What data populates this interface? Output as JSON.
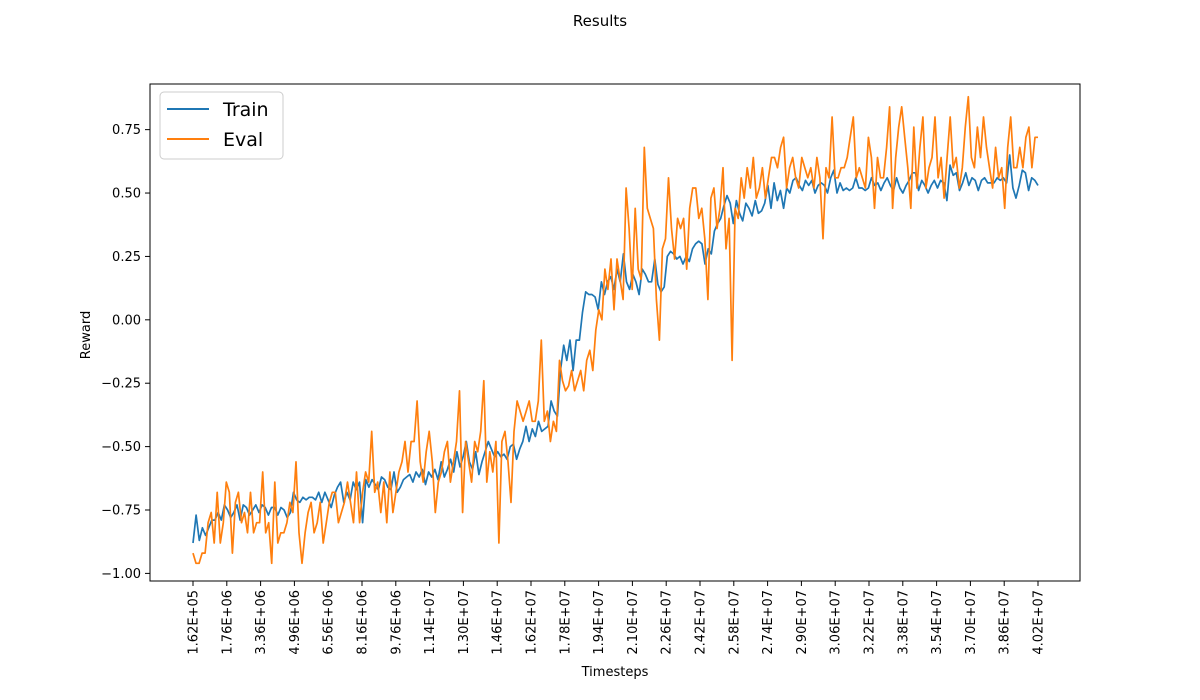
{
  "figure": {
    "suptitle": "Results"
  },
  "chart_data": {
    "type": "line",
    "title": "",
    "xlabel": "Timesteps",
    "ylabel": "Reward",
    "ylim": [
      -1.03,
      0.93
    ],
    "x_tick_labels": [
      "1.62E+05",
      "1.76E+06",
      "3.36E+06",
      "4.96E+06",
      "6.56E+06",
      "8.16E+06",
      "9.76E+06",
      "1.14E+07",
      "1.30E+07",
      "1.46E+07",
      "1.62E+07",
      "1.78E+07",
      "1.94E+07",
      "2.10E+07",
      "2.26E+07",
      "2.42E+07",
      "2.58E+07",
      "2.74E+07",
      "2.90E+07",
      "3.06E+07",
      "3.22E+07",
      "3.38E+07",
      "3.54E+07",
      "3.70E+07",
      "3.86E+07",
      "4.02E+07"
    ],
    "y_ticks": [
      -1.0,
      -0.75,
      -0.5,
      -0.25,
      0.0,
      0.25,
      0.5,
      0.75
    ],
    "y_tick_labels": [
      "−1.00",
      "−0.75",
      "−0.50",
      "−0.25",
      "0.00",
      "0.25",
      "0.50",
      "0.75"
    ],
    "legend_position": "top-left",
    "grid": false,
    "series": [
      {
        "name": "Train",
        "color": "#1f77b4",
        "values": [
          -0.88,
          -0.77,
          -0.87,
          -0.82,
          -0.85,
          -0.82,
          -0.79,
          -0.79,
          -0.76,
          -0.79,
          -0.73,
          -0.75,
          -0.78,
          -0.76,
          -0.73,
          -0.79,
          -0.73,
          -0.74,
          -0.77,
          -0.75,
          -0.73,
          -0.76,
          -0.73,
          -0.74,
          -0.77,
          -0.74,
          -0.74,
          -0.77,
          -0.74,
          -0.75,
          -0.78,
          -0.76,
          -0.68,
          -0.71,
          -0.72,
          -0.7,
          -0.71,
          -0.7,
          -0.7,
          -0.71,
          -0.68,
          -0.72,
          -0.68,
          -0.71,
          -0.74,
          -0.69,
          -0.66,
          -0.64,
          -0.72,
          -0.68,
          -0.71,
          -0.64,
          -0.67,
          -0.64,
          -0.8,
          -0.63,
          -0.66,
          -0.63,
          -0.65,
          -0.67,
          -0.62,
          -0.63,
          -0.66,
          -0.67,
          -0.6,
          -0.68,
          -0.66,
          -0.63,
          -0.62,
          -0.61,
          -0.64,
          -0.6,
          -0.62,
          -0.59,
          -0.65,
          -0.6,
          -0.62,
          -0.59,
          -0.63,
          -0.56,
          -0.62,
          -0.59,
          -0.55,
          -0.6,
          -0.52,
          -0.58,
          -0.54,
          -0.48,
          -0.56,
          -0.59,
          -0.52,
          -0.61,
          -0.56,
          -0.52,
          -0.48,
          -0.51,
          -0.54,
          -0.52,
          -0.54,
          -0.53,
          -0.55,
          -0.5,
          -0.49,
          -0.55,
          -0.51,
          -0.48,
          -0.42,
          -0.48,
          -0.43,
          -0.46,
          -0.4,
          -0.44,
          -0.43,
          -0.42,
          -0.32,
          -0.36,
          -0.38,
          -0.2,
          -0.1,
          -0.16,
          -0.08,
          -0.2,
          -0.08,
          -0.08,
          0.03,
          0.11,
          0.1,
          0.1,
          0.09,
          0.04,
          0.15,
          0.1,
          0.15,
          0.17,
          0.12,
          0.2,
          0.15,
          0.26,
          0.15,
          0.12,
          0.18,
          0.15,
          0.1,
          0.2,
          0.18,
          0.15,
          0.15,
          0.24,
          0.14,
          0.11,
          0.13,
          0.25,
          0.27,
          0.26,
          0.24,
          0.25,
          0.22,
          0.25,
          0.23,
          0.28,
          0.3,
          0.31,
          0.3,
          0.22,
          0.28,
          0.26,
          0.35,
          0.38,
          0.4,
          0.45,
          0.49,
          0.46,
          0.38,
          0.47,
          0.42,
          0.39,
          0.46,
          0.44,
          0.41,
          0.47,
          0.42,
          0.43,
          0.46,
          0.53,
          0.44,
          0.54,
          0.47,
          0.51,
          0.44,
          0.52,
          0.5,
          0.55,
          0.56,
          0.53,
          0.51,
          0.55,
          0.53,
          0.55,
          0.5,
          0.53,
          0.54,
          0.53,
          0.5,
          0.56,
          0.59,
          0.5,
          0.54,
          0.51,
          0.52,
          0.51,
          0.52,
          0.56,
          0.52,
          0.52,
          0.51,
          0.52,
          0.56,
          0.53,
          0.54,
          0.51,
          0.54,
          0.56,
          0.53,
          0.51,
          0.56,
          0.52,
          0.5,
          0.53,
          0.55,
          0.58,
          0.58,
          0.51,
          0.55,
          0.53,
          0.5,
          0.53,
          0.55,
          0.52,
          0.55,
          0.54,
          0.47,
          0.61,
          0.57,
          0.58,
          0.51,
          0.54,
          0.58,
          0.53,
          0.56,
          0.55,
          0.51,
          0.55,
          0.56,
          0.54,
          0.54,
          0.54,
          0.56,
          0.55,
          0.56,
          0.54,
          0.65,
          0.52,
          0.48,
          0.53,
          0.59,
          0.58,
          0.51,
          0.56,
          0.55,
          0.53
        ]
      },
      {
        "name": "Eval",
        "color": "#ff7f0e",
        "values": [
          -0.92,
          -0.96,
          -0.96,
          -0.92,
          -0.92,
          -0.8,
          -0.76,
          -0.88,
          -0.68,
          -0.88,
          -0.8,
          -0.64,
          -0.68,
          -0.92,
          -0.72,
          -0.68,
          -0.8,
          -0.76,
          -0.84,
          -0.68,
          -0.84,
          -0.8,
          -0.8,
          -0.6,
          -0.84,
          -0.8,
          -0.96,
          -0.64,
          -0.88,
          -0.84,
          -0.84,
          -0.8,
          -0.72,
          -0.76,
          -0.56,
          -0.84,
          -0.96,
          -0.84,
          -0.76,
          -0.72,
          -0.84,
          -0.8,
          -0.72,
          -0.88,
          -0.8,
          -0.72,
          -0.68,
          -0.68,
          -0.8,
          -0.76,
          -0.72,
          -0.64,
          -0.72,
          -0.8,
          -0.6,
          -0.8,
          -0.68,
          -0.6,
          -0.64,
          -0.44,
          -0.68,
          -0.64,
          -0.76,
          -0.64,
          -0.8,
          -0.6,
          -0.76,
          -0.68,
          -0.6,
          -0.56,
          -0.48,
          -0.6,
          -0.48,
          -0.48,
          -0.32,
          -0.56,
          -0.64,
          -0.52,
          -0.44,
          -0.56,
          -0.76,
          -0.64,
          -0.6,
          -0.52,
          -0.48,
          -0.64,
          -0.56,
          -0.48,
          -0.28,
          -0.76,
          -0.48,
          -0.56,
          -0.64,
          -0.48,
          -0.52,
          -0.44,
          -0.24,
          -0.64,
          -0.52,
          -0.6,
          -0.48,
          -0.88,
          -0.48,
          -0.44,
          -0.56,
          -0.72,
          -0.44,
          -0.32,
          -0.36,
          -0.4,
          -0.36,
          -0.32,
          -0.4,
          -0.4,
          -0.32,
          -0.08,
          -0.4,
          -0.36,
          -0.48,
          -0.4,
          -0.44,
          -0.16,
          -0.24,
          -0.28,
          -0.26,
          -0.2,
          -0.28,
          -0.24,
          -0.2,
          -0.28,
          -0.16,
          -0.12,
          -0.2,
          -0.04,
          0.04,
          0.0,
          0.2,
          0.12,
          0.24,
          0.04,
          0.24,
          0.16,
          0.08,
          0.52,
          0.36,
          0.12,
          0.44,
          0.2,
          0.16,
          0.68,
          0.44,
          0.4,
          0.36,
          0.08,
          -0.08,
          0.28,
          0.32,
          0.56,
          0.36,
          0.24,
          0.4,
          0.36,
          0.4,
          0.2,
          0.44,
          0.52,
          0.52,
          0.4,
          0.44,
          0.32,
          0.08,
          0.48,
          0.52,
          0.36,
          0.44,
          0.6,
          0.28,
          0.4,
          -0.16,
          0.44,
          0.4,
          0.56,
          0.48,
          0.6,
          0.52,
          0.64,
          0.48,
          0.52,
          0.6,
          0.48,
          0.56,
          0.64,
          0.64,
          0.6,
          0.68,
          0.72,
          0.52,
          0.6,
          0.64,
          0.56,
          0.52,
          0.64,
          0.6,
          0.56,
          0.6,
          0.52,
          0.64,
          0.56,
          0.32,
          0.6,
          0.56,
          0.8,
          0.56,
          0.56,
          0.6,
          0.6,
          0.64,
          0.72,
          0.8,
          0.56,
          0.6,
          0.56,
          0.52,
          0.72,
          0.64,
          0.44,
          0.64,
          0.56,
          0.56,
          0.68,
          0.84,
          0.44,
          0.64,
          0.76,
          0.84,
          0.72,
          0.6,
          0.44,
          0.76,
          0.52,
          0.68,
          0.8,
          0.52,
          0.6,
          0.64,
          0.8,
          0.56,
          0.64,
          0.48,
          0.64,
          0.8,
          0.6,
          0.64,
          0.52,
          0.6,
          0.76,
          0.88,
          0.64,
          0.6,
          0.76,
          0.64,
          0.8,
          0.68,
          0.6,
          0.52,
          0.68,
          0.56,
          0.6,
          0.44,
          0.68,
          0.8,
          0.6,
          0.6,
          0.68,
          0.6,
          0.72,
          0.76,
          0.6,
          0.72,
          0.72
        ]
      }
    ]
  }
}
